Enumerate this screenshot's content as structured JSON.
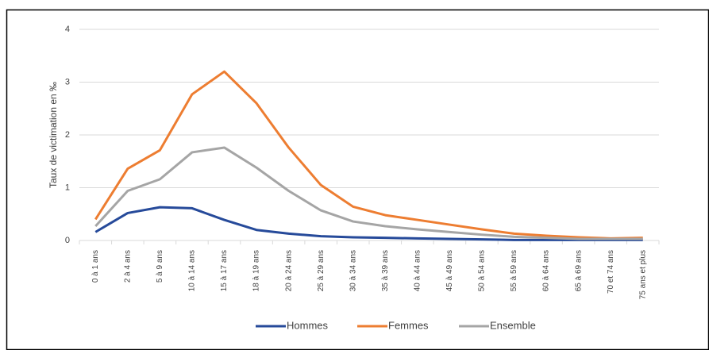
{
  "chart_data": {
    "type": "line",
    "ylabel": "Taux de victimation en  ‰",
    "categories": [
      "0 à 1 ans",
      "2 à 4 ans",
      "5 à 9 ans",
      "10 à 14 ans",
      "15 à 17 ans",
      "18 à 19 ans",
      "20 à 24 ans",
      "25 à 29 ans",
      "30 à 34 ans",
      "35 à 39 ans",
      "40 à 44 ans",
      "45 à 49 ans",
      "50 à 54 ans",
      "55 à 59 ans",
      "60 à 64 ans",
      "65 à 69 ans",
      "70 et 74 ans",
      "75 ans et plus"
    ],
    "series": [
      {
        "name": "Hommes",
        "color": "#264a9a",
        "values": [
          0.16,
          0.52,
          0.63,
          0.61,
          0.39,
          0.2,
          0.13,
          0.08,
          0.06,
          0.05,
          0.04,
          0.03,
          0.02,
          0.01,
          0.01,
          0.01,
          0.01,
          0.01
        ]
      },
      {
        "name": "Femmes",
        "color": "#ed7d31",
        "values": [
          0.4,
          1.36,
          1.71,
          2.77,
          3.2,
          2.6,
          1.76,
          1.05,
          0.64,
          0.48,
          0.39,
          0.3,
          0.21,
          0.13,
          0.09,
          0.06,
          0.04,
          0.05
        ]
      },
      {
        "name": "Ensemble",
        "color": "#a5a5a5",
        "values": [
          0.27,
          0.94,
          1.16,
          1.67,
          1.76,
          1.38,
          0.94,
          0.57,
          0.36,
          0.27,
          0.21,
          0.16,
          0.11,
          0.07,
          0.05,
          0.03,
          0.03,
          0.03
        ]
      }
    ],
    "ylim": [
      0,
      4
    ],
    "yticks": [
      0,
      1,
      2,
      3,
      4
    ],
    "grid": true,
    "legend": "bottom"
  }
}
